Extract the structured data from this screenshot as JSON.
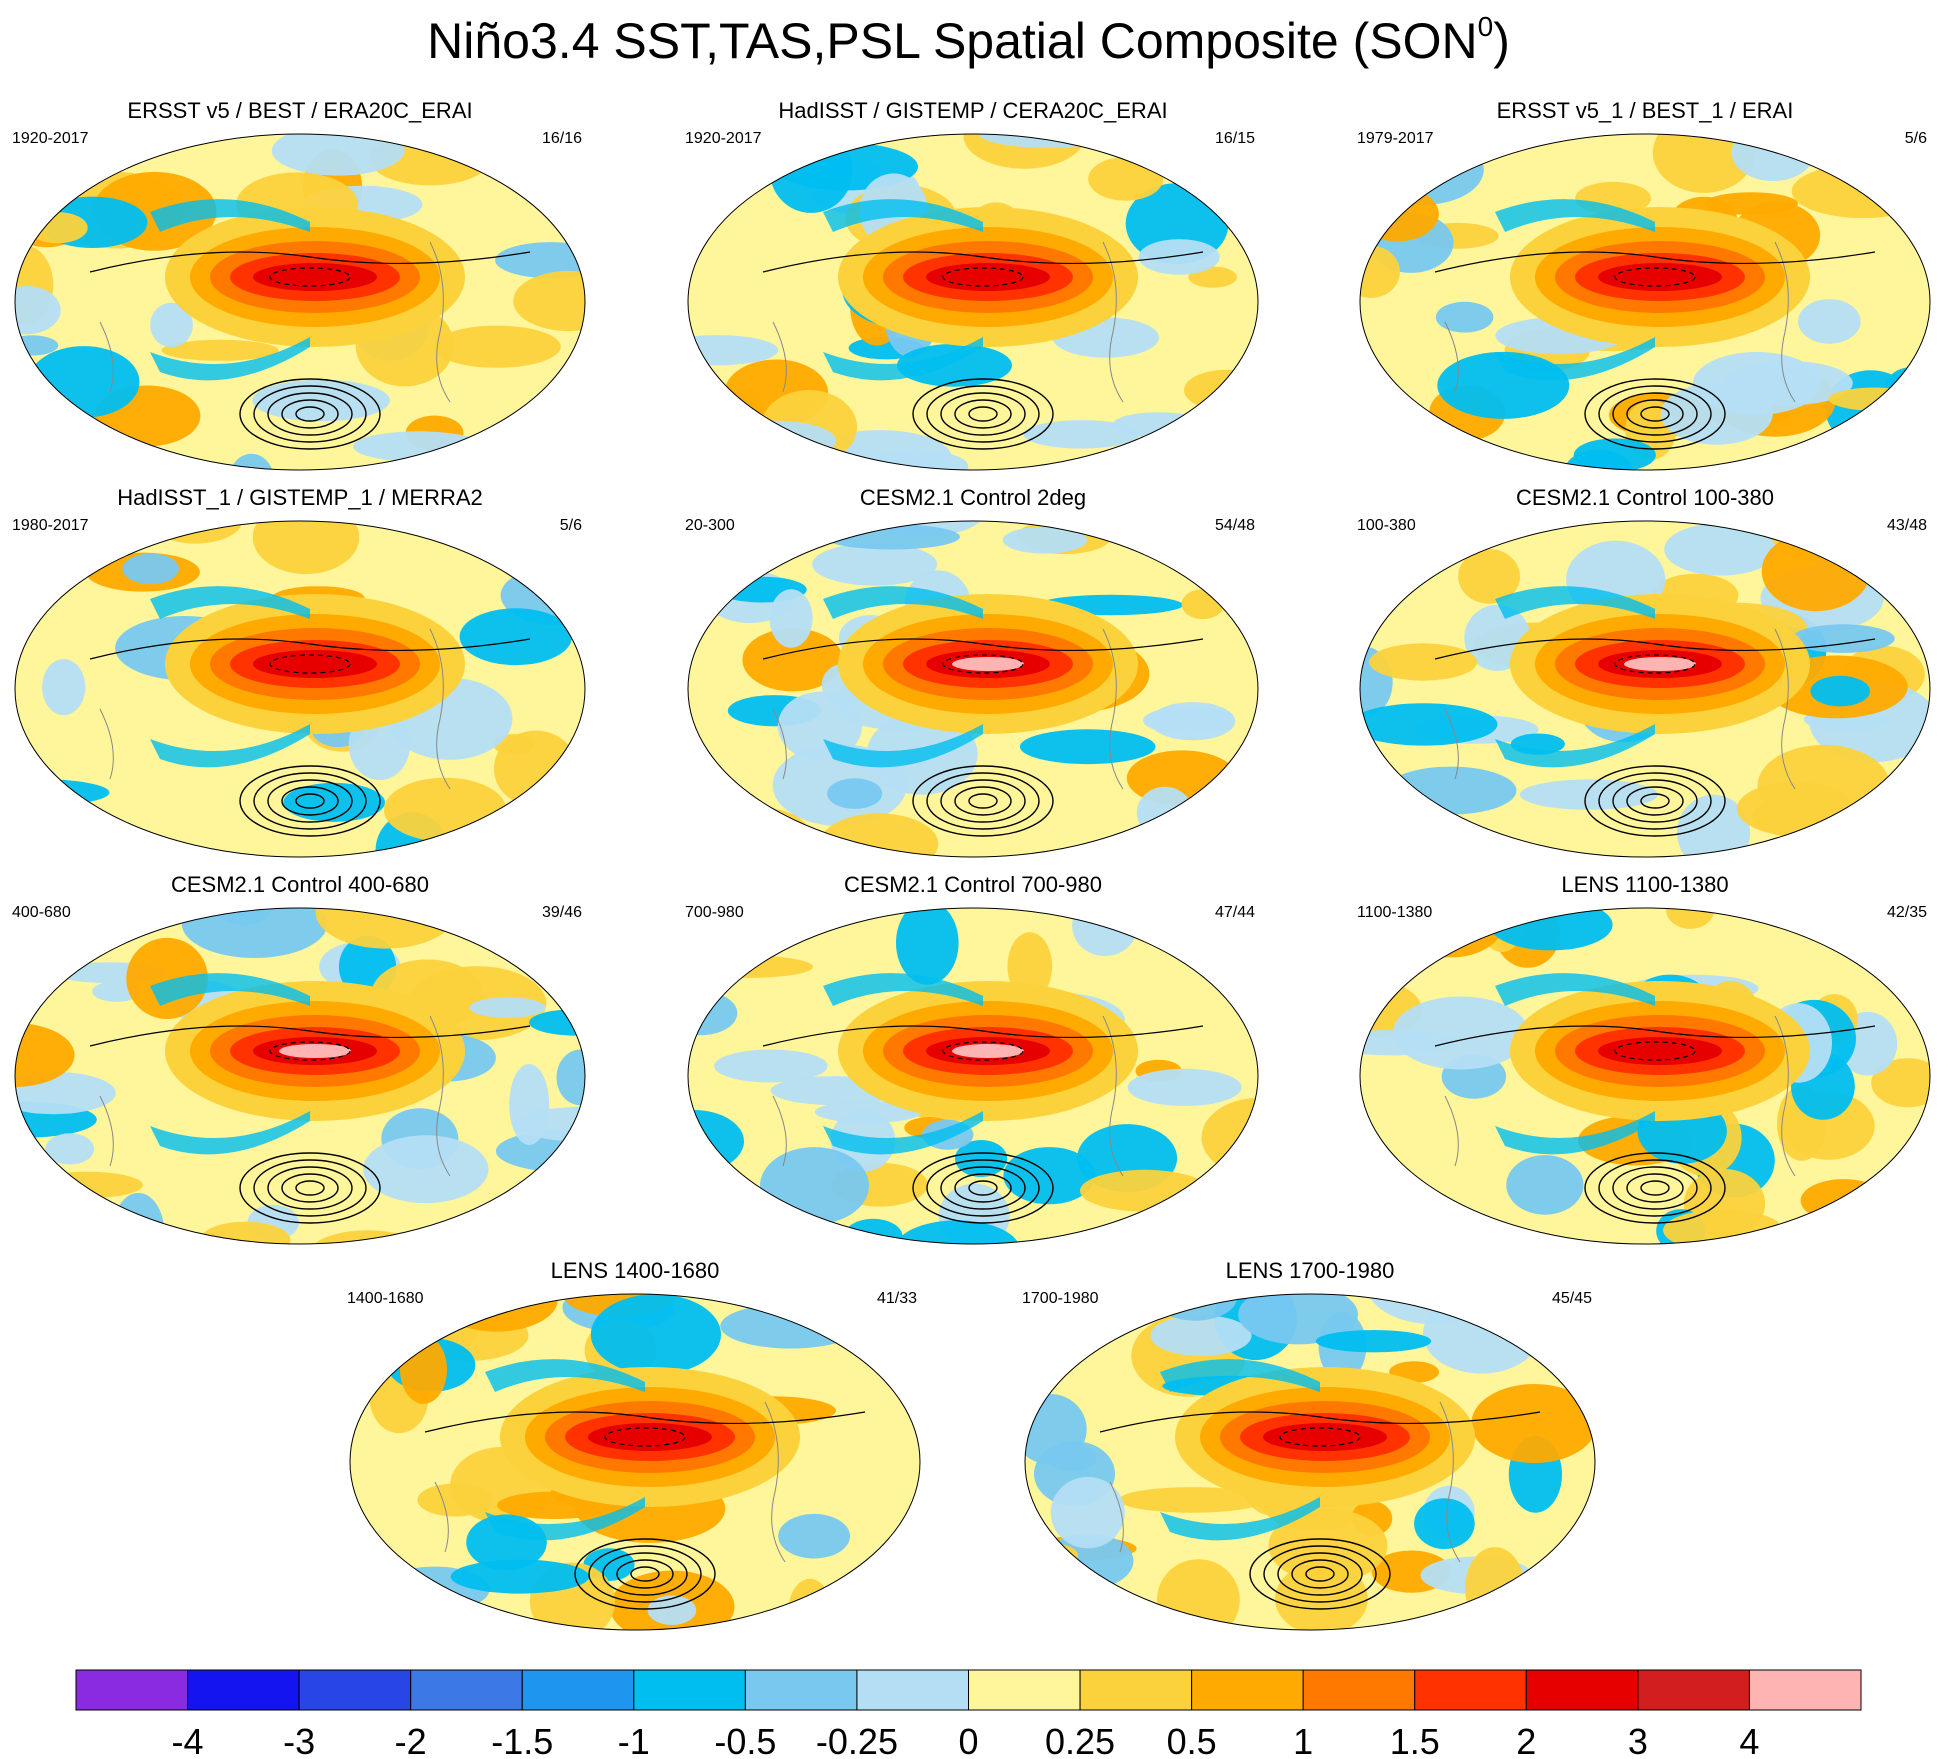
{
  "title": {
    "main": "Niño3.4 SST,TAS,PSL Spatial Composite (SON",
    "sup": "0",
    "close": ")"
  },
  "panels": [
    {
      "title": "ERSST v5 / BEST / ERA20C_ERAI",
      "left": "1920-2017",
      "right": "16/16",
      "variant": 0
    },
    {
      "title": "HadISST / GISTEMP / CERA20C_ERAI",
      "left": "1920-2017",
      "right": "16/15",
      "variant": 1
    },
    {
      "title": "ERSST v5_1 / BEST_1 / ERAI",
      "left": "1979-2017",
      "right": "5/6",
      "variant": 2
    },
    {
      "title": "HadISST_1 / GISTEMP_1 / MERRA2",
      "left": "1980-2017",
      "right": "5/6",
      "variant": 3
    },
    {
      "title": "CESM2.1 Control 2deg",
      "left": "20-300",
      "right": "54/48",
      "variant": 4
    },
    {
      "title": "CESM2.1 Control 100-380",
      "left": "100-380",
      "right": "43/48",
      "variant": 5
    },
    {
      "title": "CESM2.1 Control 400-680",
      "left": "400-680",
      "right": "39/46",
      "variant": 6
    },
    {
      "title": "CESM2.1 Control 700-980",
      "left": "700-980",
      "right": "47/44",
      "variant": 7
    },
    {
      "title": "LENS 1100-1380",
      "left": "1100-1380",
      "right": "42/35",
      "variant": 8
    },
    {
      "title": "LENS 1400-1680",
      "left": "1400-1680",
      "right": "41/33",
      "variant": 9
    },
    {
      "title": "LENS 1700-1980",
      "left": "1700-1980",
      "right": "45/45",
      "variant": 10
    }
  ],
  "colorbar": {
    "colors": [
      "#8a2be2",
      "#1414f0",
      "#2846e6",
      "#3c78e6",
      "#1e96f0",
      "#00bef0",
      "#78c8f0",
      "#b4def4",
      "#fff59a",
      "#fcd23c",
      "#ffaa00",
      "#ff7800",
      "#ff3200",
      "#e60000",
      "#d21e1e",
      "#ffb4b4"
    ],
    "labels": [
      "-4",
      "-3",
      "-2",
      "-1.5",
      "-1",
      "-0.5",
      "-0.25",
      "0",
      "0.25",
      "0.5",
      "1",
      "1.5",
      "2",
      "3",
      "4"
    ]
  }
}
